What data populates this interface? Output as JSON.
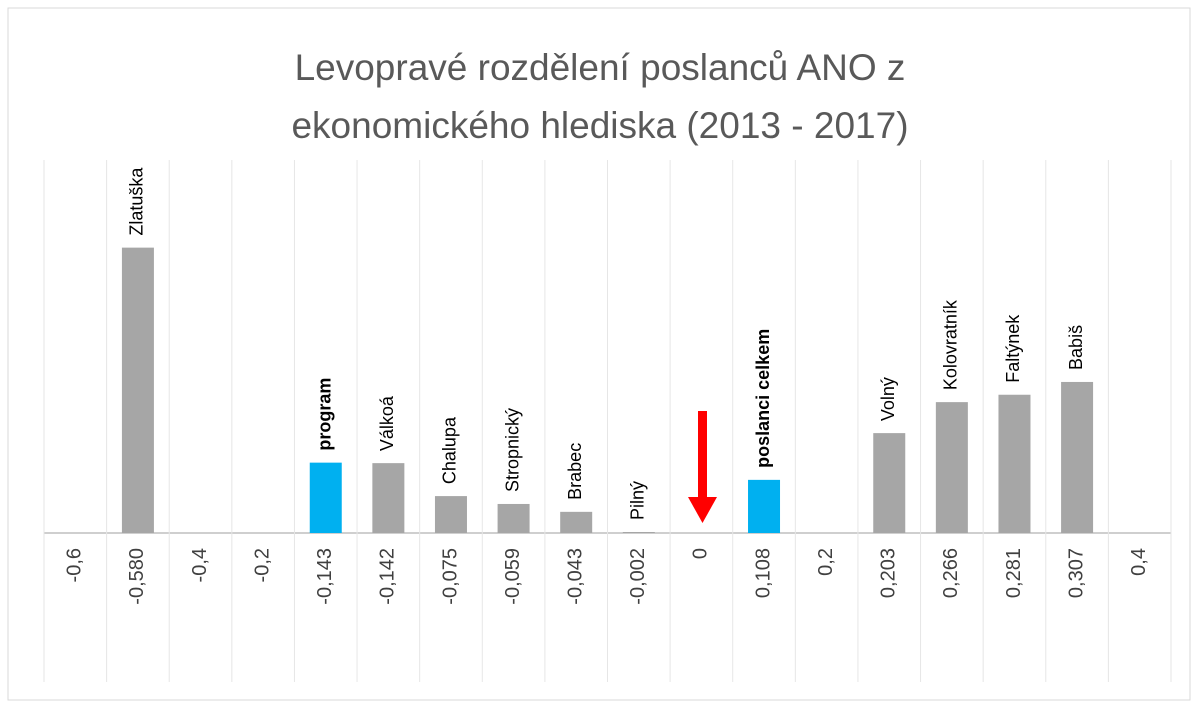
{
  "chart_data": {
    "type": "bar",
    "title": [
      "Levopravé rozdělení poslanců ANO z",
      "ekonomického hlediska (2013 - 2017)"
    ],
    "categories": [
      "-0,6",
      "-0,580",
      "-0,4",
      "-0,2",
      "-0,143",
      "-0,142",
      "-0,075",
      "-0,059",
      "-0,043",
      "-0,002",
      "0",
      "0,108",
      "0,2",
      "0,203",
      "0,266",
      "0,281",
      "0,307",
      "0,4"
    ],
    "values": [
      null,
      0.58,
      null,
      null,
      0.143,
      0.142,
      0.075,
      0.059,
      0.043,
      0.002,
      null,
      0.108,
      null,
      0.203,
      0.266,
      0.281,
      0.307,
      null
    ],
    "bar_labels": [
      null,
      "Zlatuška",
      null,
      null,
      "program",
      "Válkoá",
      "Chalupa",
      "Stropnický",
      "Brabec",
      "Pilný",
      null,
      "poslanci celkem",
      null,
      "Volný",
      "Kolovratník",
      "Faltýnek",
      "Babiš",
      null
    ],
    "bold": [
      false,
      false,
      false,
      false,
      true,
      false,
      false,
      false,
      false,
      false,
      false,
      true,
      false,
      false,
      false,
      false,
      false,
      false
    ],
    "colors": [
      "#a6a6a6",
      "#a6a6a6",
      "#a6a6a6",
      "#a6a6a6",
      "#00b0f0",
      "#a6a6a6",
      "#a6a6a6",
      "#a6a6a6",
      "#a6a6a6",
      "#a6a6a6",
      "#a6a6a6",
      "#00b0f0",
      "#a6a6a6",
      "#a6a6a6",
      "#a6a6a6",
      "#a6a6a6",
      "#a6a6a6",
      "#a6a6a6"
    ],
    "grid": true
  }
}
